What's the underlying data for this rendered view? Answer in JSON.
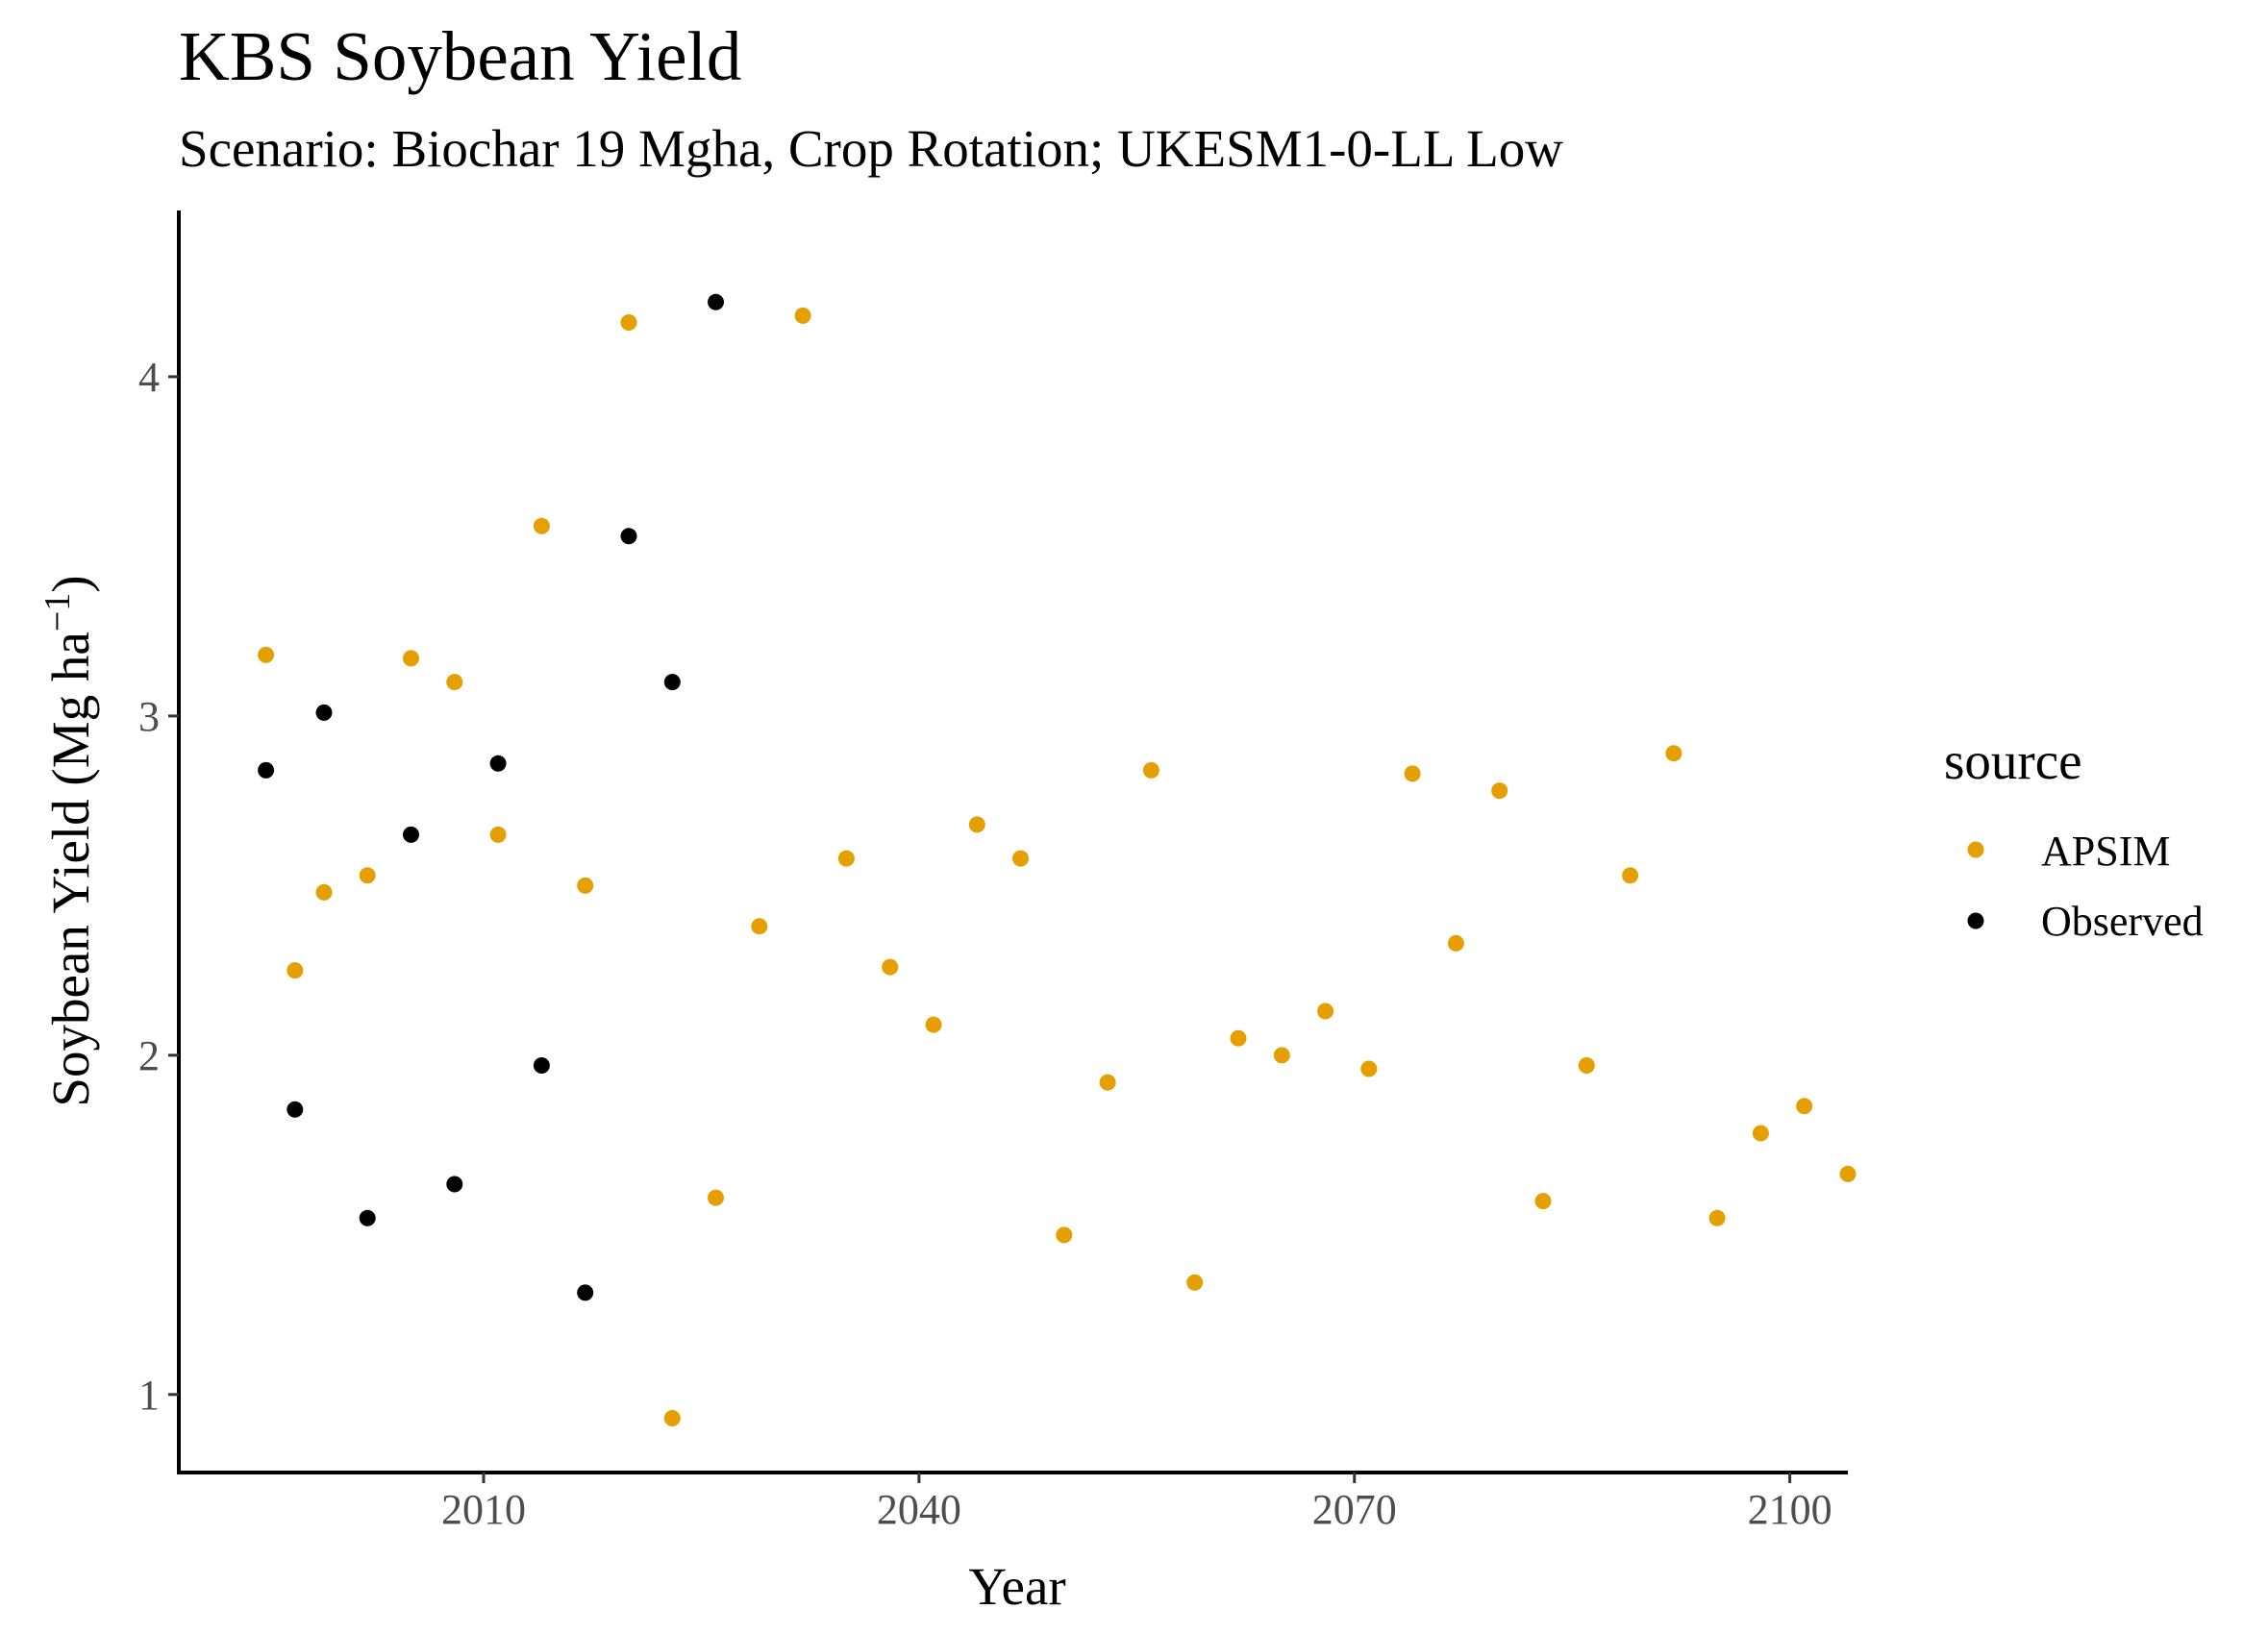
{
  "chart_data": {
    "type": "scatter",
    "title": "KBS  Soybean Yield",
    "subtitle": "Scenario: Biochar 19 Mgha, Crop Rotation; UKESM1-0-LL Low",
    "xlabel": "Year",
    "ylabel": "Soybean Yield (Mg ha",
    "ylabel_superscript": "−1",
    "ylabel_close": ")",
    "xlim": [
      1989,
      2104
    ],
    "ylim": [
      0.77,
      4.49
    ],
    "x_ticks": [
      2010,
      2040,
      2070,
      2100
    ],
    "y_ticks": [
      1,
      2,
      3,
      4
    ],
    "grid": false,
    "legend": {
      "title": "source",
      "position": "right",
      "entries": [
        {
          "label": "APSIM",
          "color": "#E69F00"
        },
        {
          "label": "Observed",
          "color": "#000000"
        }
      ]
    },
    "series": [
      {
        "name": "APSIM",
        "color": "#E69F00",
        "points": [
          [
            1995,
            3.18
          ],
          [
            1997,
            2.25
          ],
          [
            1999,
            2.48
          ],
          [
            2002,
            2.53
          ],
          [
            2005,
            3.17
          ],
          [
            2008,
            3.1
          ],
          [
            2011,
            2.65
          ],
          [
            2014,
            3.56
          ],
          [
            2017,
            2.5
          ],
          [
            2020,
            4.16
          ],
          [
            2023,
            0.93
          ],
          [
            2026,
            1.58
          ],
          [
            2029,
            2.38
          ],
          [
            2032,
            4.18
          ],
          [
            2035,
            2.58
          ],
          [
            2038,
            2.26
          ],
          [
            2041,
            2.09
          ],
          [
            2044,
            2.68
          ],
          [
            2047,
            2.58
          ],
          [
            2050,
            1.47
          ],
          [
            2053,
            1.92
          ],
          [
            2056,
            2.84
          ],
          [
            2059,
            1.33
          ],
          [
            2062,
            2.05
          ],
          [
            2065,
            2.0
          ],
          [
            2068,
            2.13
          ],
          [
            2071,
            1.96
          ],
          [
            2074,
            2.83
          ],
          [
            2077,
            2.33
          ],
          [
            2080,
            2.78
          ],
          [
            2083,
            1.57
          ],
          [
            2086,
            1.97
          ],
          [
            2089,
            2.53
          ],
          [
            2092,
            2.89
          ],
          [
            2095,
            1.52
          ],
          [
            2098,
            1.77
          ],
          [
            2101,
            1.85
          ],
          [
            2104,
            1.65
          ]
        ]
      },
      {
        "name": "Observed",
        "color": "#000000",
        "points": [
          [
            1995,
            2.84
          ],
          [
            1997,
            1.84
          ],
          [
            1999,
            3.01
          ],
          [
            2002,
            1.52
          ],
          [
            2005,
            2.65
          ],
          [
            2008,
            1.62
          ],
          [
            2011,
            2.86
          ],
          [
            2014,
            1.97
          ],
          [
            2017,
            1.3
          ],
          [
            2020,
            3.53
          ],
          [
            2023,
            3.1
          ],
          [
            2026,
            4.22
          ]
        ]
      }
    ]
  }
}
